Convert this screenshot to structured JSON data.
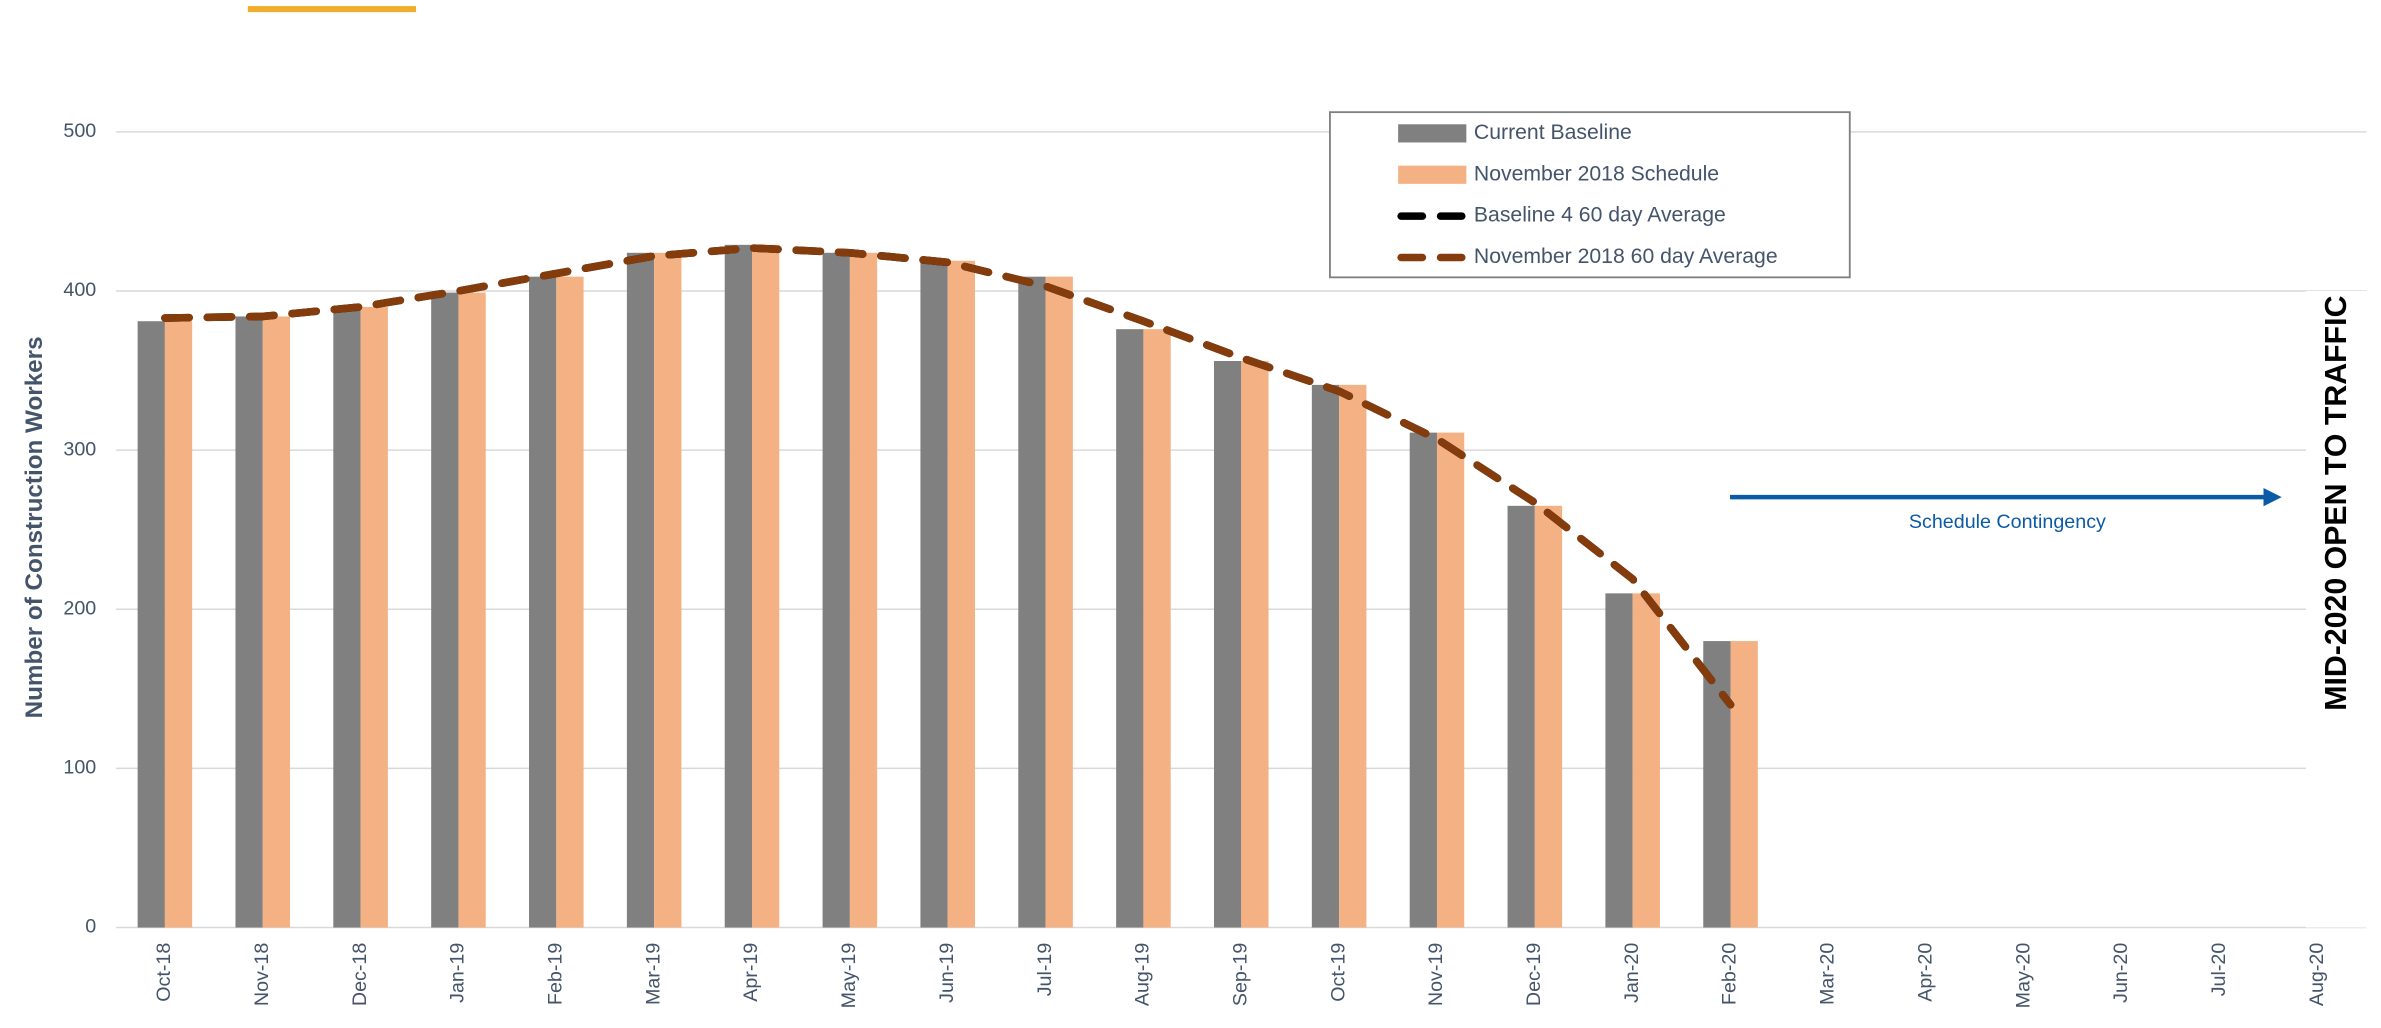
{
  "chart_data": {
    "type": "bar",
    "y_label": "Number of Construction Workers",
    "categories": [
      "Oct-18",
      "Nov-18",
      "Dec-18",
      "Jan-19",
      "Feb-19",
      "Mar-19",
      "Apr-19",
      "May-19",
      "Jun-19",
      "Jul-19",
      "Aug-19",
      "Sep-19",
      "Oct-19",
      "Nov-19",
      "Dec-19",
      "Jan-20",
      "Feb-20",
      "Mar-20",
      "Apr-20",
      "May-20",
      "Jun-20",
      "Jul-20",
      "Aug-20"
    ],
    "series": [
      {
        "name": "Current Baseline",
        "type": "bar",
        "color": "#808080",
        "values": [
          381,
          384,
          390,
          399,
          409,
          424,
          429,
          424,
          419,
          409,
          376,
          356,
          341,
          311,
          265,
          210,
          180,
          null,
          null,
          null,
          null,
          null,
          null
        ]
      },
      {
        "name": "November 2018 Schedule",
        "type": "bar",
        "color": "#f4b183",
        "values": [
          381,
          384,
          390,
          399,
          409,
          424,
          429,
          424,
          419,
          409,
          376,
          356,
          341,
          311,
          265,
          210,
          180,
          null,
          null,
          null,
          null,
          null,
          null
        ]
      },
      {
        "name": "Baseline 4 60 day Average",
        "type": "line",
        "color": "#000000",
        "values": [
          383,
          384,
          390,
          400,
          411,
          422,
          427,
          424,
          418,
          403,
          381,
          358,
          337,
          307,
          267,
          219,
          140,
          null,
          null,
          null,
          null,
          null,
          null
        ]
      },
      {
        "name": "November 2018 60 day Average",
        "type": "line",
        "color": "#843c0c",
        "values": [
          383,
          384,
          390,
          400,
          411,
          422,
          427,
          424,
          418,
          403,
          381,
          358,
          337,
          307,
          267,
          219,
          140,
          null,
          null,
          null,
          null,
          null,
          null
        ]
      }
    ],
    "ylim": [
      0,
      500
    ],
    "yticks": [
      0,
      100,
      200,
      300,
      400,
      500
    ],
    "grid": true,
    "annotations": [
      "Schedule Contingency",
      "MID-2020 OPEN TO TRAFFIC"
    ]
  }
}
